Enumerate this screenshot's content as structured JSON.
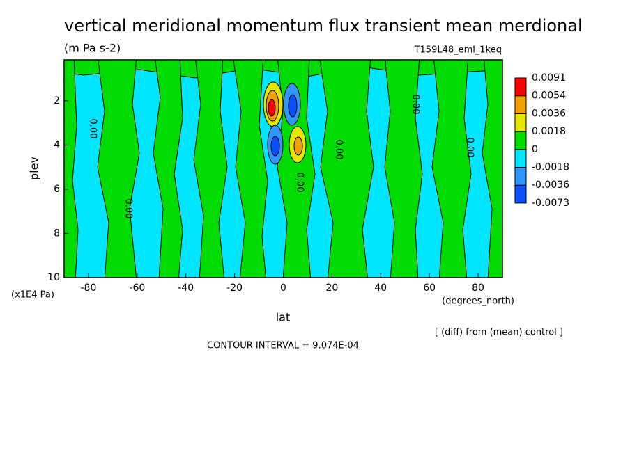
{
  "chart_data": {
    "type": "contour",
    "title": "vertical meridional momentum flux transient mean merdional",
    "subtitle": "(m Pa s-2)",
    "run_label": "T159L48_eml_1keq",
    "xlabel": "lat",
    "ylabel": "plev",
    "xunit": "(degrees_north)",
    "yunit": "(x1E4 Pa)",
    "xlim": [
      -90,
      90
    ],
    "ylim": [
      10,
      0.15
    ],
    "xticks": [
      -80,
      -60,
      -40,
      -20,
      0,
      20,
      40,
      60,
      80
    ],
    "yticks": [
      2,
      4,
      6,
      8,
      10
    ],
    "levels": [
      -0.0073,
      -0.0036,
      -0.0018,
      0,
      0.0018,
      0.0036,
      0.0054,
      0.0091
    ],
    "colors": [
      "#0a50ff",
      "#3296ff",
      "#00e6ff",
      "#00dc00",
      "#e6e600",
      "#f0a000",
      "#ff0000"
    ],
    "contour_labels": [
      "0.00",
      "0.00",
      "0.00",
      "0.00",
      "0.00",
      "0.00"
    ],
    "note": "[ (diff) from (mean) control ]",
    "contour_interval": "CONTOUR INTERVAL = 9.074E-04"
  }
}
